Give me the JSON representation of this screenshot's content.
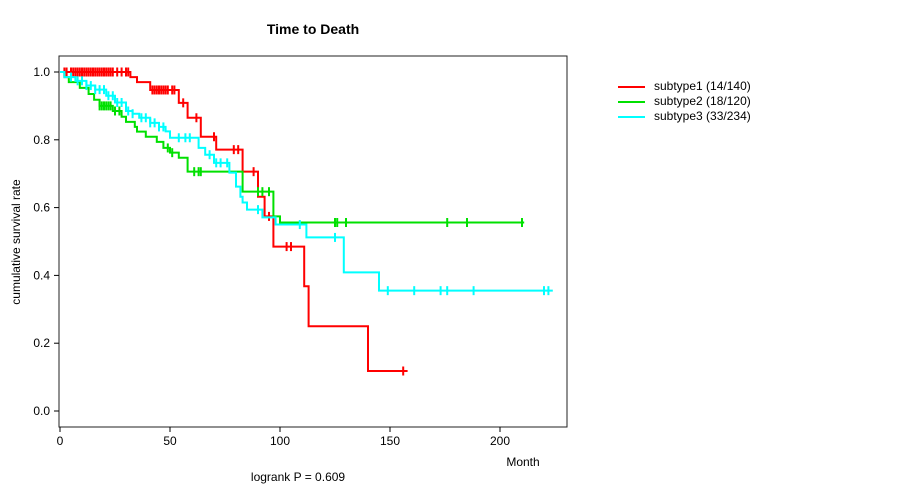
{
  "title": "Time to Death",
  "footer": "logrank P = 0.609",
  "axes": {
    "x_label": "Month",
    "y_label": "cumulative survival rate",
    "x_ticks": [
      0,
      50,
      100,
      150,
      200
    ],
    "y_ticks": [
      0.0,
      0.2,
      0.4,
      0.6,
      0.8,
      1.0
    ]
  },
  "legend": [
    {
      "label": "subtype1 (14/140)",
      "color": "#ff0000"
    },
    {
      "label": "subtype2 (18/120)",
      "color": "#00e000"
    },
    {
      "label": "subtype3 (33/234)",
      "color": "#00ffff"
    }
  ],
  "chart_data": {
    "type": "line",
    "variant": "kaplan-meier-step",
    "title": "Time to Death",
    "xlabel": "Month",
    "ylabel": "cumulative survival rate",
    "annotation": "logrank P = 0.609",
    "xlim": [
      0,
      230
    ],
    "ylim": [
      0,
      1.04
    ],
    "grid": false,
    "legend_position": "right-outside",
    "series": [
      {
        "name": "subtype1 (14/140)",
        "color": "#ff0000",
        "deaths": 14,
        "n": 140,
        "end_month": 158,
        "steps": [
          [
            0,
            1.0
          ],
          [
            32,
            0.985
          ],
          [
            35,
            0.97
          ],
          [
            41,
            0.947
          ],
          [
            54,
            0.909
          ],
          [
            58,
            0.865
          ],
          [
            64,
            0.809
          ],
          [
            71,
            0.771
          ],
          [
            83,
            0.706
          ],
          [
            90,
            0.632
          ],
          [
            93,
            0.574
          ],
          [
            97,
            0.485
          ],
          [
            111,
            0.368
          ],
          [
            113,
            0.25
          ],
          [
            140,
            0.118
          ]
        ],
        "censor_months": [
          2,
          3,
          5,
          6,
          7,
          8,
          9,
          10,
          11,
          12,
          13,
          14,
          15,
          16,
          17,
          18,
          19,
          20,
          21,
          22,
          23,
          24,
          26,
          28,
          30,
          31,
          42,
          43,
          44,
          45,
          46,
          47,
          48,
          49,
          51,
          52,
          56,
          62,
          70,
          79,
          81,
          88,
          95,
          103,
          105,
          156
        ]
      },
      {
        "name": "subtype2 (18/120)",
        "color": "#00e000",
        "deaths": 18,
        "n": 120,
        "end_month": 211,
        "steps": [
          [
            0,
            1.0
          ],
          [
            2,
            0.985
          ],
          [
            4,
            0.97
          ],
          [
            9,
            0.953
          ],
          [
            13,
            0.935
          ],
          [
            15.5,
            0.918
          ],
          [
            18,
            0.9
          ],
          [
            24,
            0.885
          ],
          [
            28,
            0.868
          ],
          [
            30,
            0.853
          ],
          [
            34,
            0.838
          ],
          [
            35,
            0.824
          ],
          [
            39,
            0.809
          ],
          [
            44,
            0.794
          ],
          [
            47,
            0.776
          ],
          [
            50,
            0.762
          ],
          [
            54,
            0.747
          ],
          [
            58,
            0.706
          ],
          [
            83,
            0.647
          ],
          [
            97,
            0.574
          ],
          [
            100,
            0.556
          ]
        ],
        "censor_months": [
          18,
          19,
          20,
          21,
          22,
          23,
          25,
          27,
          49,
          51,
          61,
          63,
          64,
          90,
          92,
          95,
          125,
          126,
          130,
          176,
          185,
          210
        ]
      },
      {
        "name": "subtype3 (33/234)",
        "color": "#00ffff",
        "deaths": 33,
        "n": 234,
        "end_month": 224,
        "steps": [
          [
            0,
            1.0
          ],
          [
            2,
            0.985
          ],
          [
            7,
            0.974
          ],
          [
            12,
            0.96
          ],
          [
            16,
            0.948
          ],
          [
            21,
            0.93
          ],
          [
            25,
            0.91
          ],
          [
            30,
            0.885
          ],
          [
            33,
            0.877
          ],
          [
            36,
            0.865
          ],
          [
            41,
            0.85
          ],
          [
            45,
            0.838
          ],
          [
            48,
            0.825
          ],
          [
            50,
            0.806
          ],
          [
            63,
            0.776
          ],
          [
            66,
            0.756
          ],
          [
            70,
            0.732
          ],
          [
            77,
            0.703
          ],
          [
            80,
            0.662
          ],
          [
            82,
            0.632
          ],
          [
            83,
            0.615
          ],
          [
            85,
            0.594
          ],
          [
            92,
            0.571
          ],
          [
            98,
            0.55
          ],
          [
            112,
            0.512
          ],
          [
            129,
            0.409
          ],
          [
            145,
            0.355
          ]
        ],
        "censor_months": [
          5,
          8,
          10,
          12,
          14,
          16,
          18,
          20,
          22,
          24,
          26,
          28,
          31,
          33,
          37,
          39,
          41,
          43,
          45,
          47,
          54,
          57,
          59,
          68,
          71,
          73,
          76,
          90,
          109,
          125,
          149,
          161,
          173,
          176,
          188,
          220,
          222
        ]
      }
    ]
  }
}
